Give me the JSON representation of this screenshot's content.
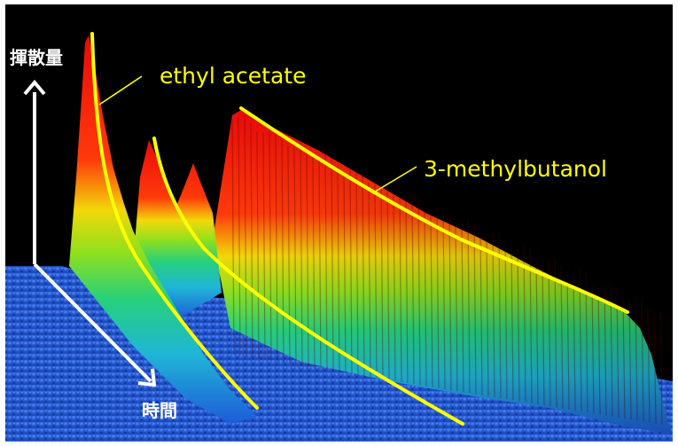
{
  "chart_data": {
    "type": "area",
    "title": "",
    "axes": {
      "vertical_label": "揮散量",
      "depth_label": "時間"
    },
    "annotations": [
      {
        "label": "ethyl acetate"
      },
      {
        "label": "3-methylbutanol"
      }
    ],
    "colors": {
      "background": "#000000",
      "frame": "#ffffff",
      "arrow": "#ffffff",
      "annotation": "#ffff00",
      "colormap": [
        "#1e5bd8",
        "#1fb6d6",
        "#26d07c",
        "#8fe01e",
        "#f2d80a",
        "#ff6a00",
        "#e80a0a"
      ]
    }
  }
}
